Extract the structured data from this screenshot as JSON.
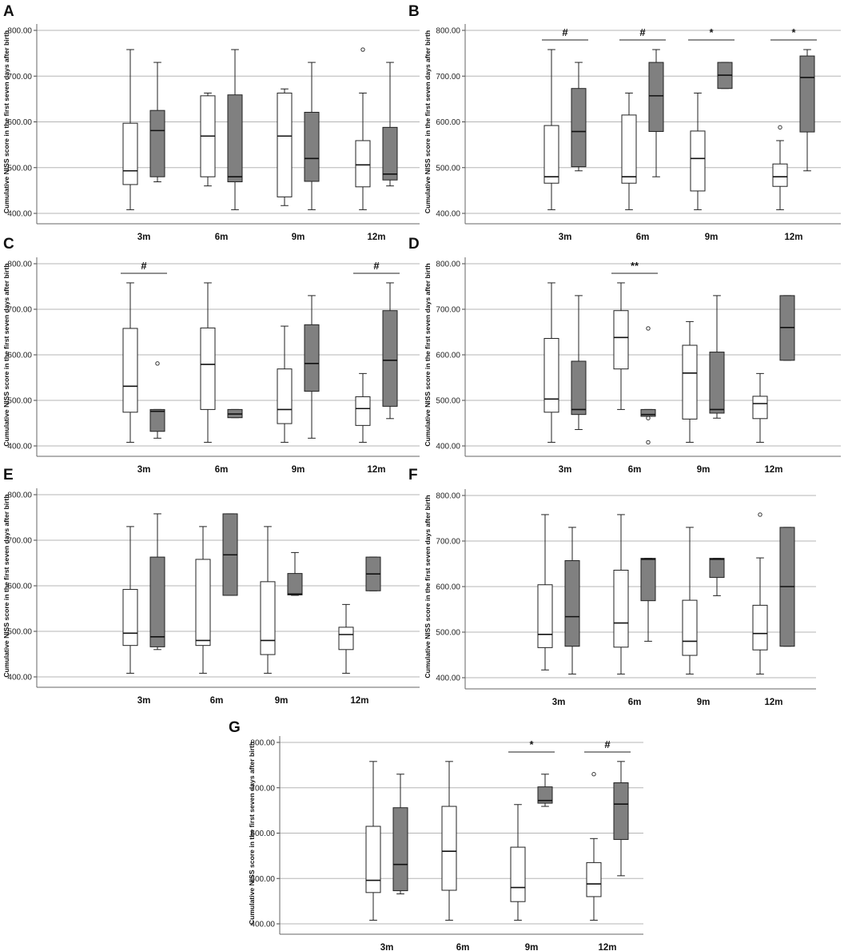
{
  "chart_data": [
    {
      "type": "box",
      "panel": "A",
      "ylabel": "Cumulative NISS score in the first seven days after birth",
      "ylim": [
        400,
        800
      ],
      "yticks": [
        "400.00",
        "500.00",
        "600.00",
        "700.00",
        "800.00"
      ],
      "categories": [
        "3m",
        "6m",
        "9m",
        "12m"
      ],
      "series": [
        {
          "color": "#ffffff",
          "boxes": [
            {
              "min": 408,
              "q1": 463,
              "median": 493,
              "q3": 597,
              "max": 758
            },
            {
              "min": 460,
              "q1": 480,
              "median": 569,
              "q3": 657,
              "max": 663
            },
            {
              "min": 417,
              "q1": 436,
              "median": 569,
              "q3": 663,
              "max": 672
            },
            {
              "min": 408,
              "q1": 458,
              "median": 506,
              "q3": 559,
              "max": 663,
              "outliers": [
                758
              ]
            }
          ]
        },
        {
          "color": "#808080",
          "boxes": [
            {
              "min": 469,
              "q1": 480,
              "median": 581,
              "q3": 625,
              "max": 730
            },
            {
              "min": 408,
              "q1": 469,
              "median": 480,
              "q3": 659,
              "max": 758
            },
            {
              "min": 408,
              "q1": 470,
              "median": 520,
              "q3": 621,
              "max": 730
            },
            {
              "min": 460,
              "q1": 473,
              "median": 486,
              "q3": 588,
              "max": 730
            }
          ]
        }
      ],
      "significance": []
    },
    {
      "type": "box",
      "panel": "B",
      "ylabel": "Cumulative NISS score in the first seven days after birth",
      "ylim": [
        400,
        800
      ],
      "yticks": [
        "400.00",
        "500.00",
        "600.00",
        "700.00",
        "800.00"
      ],
      "categories": [
        "3m",
        "6m",
        "9m",
        "12m"
      ],
      "series": [
        {
          "color": "#ffffff",
          "boxes": [
            {
              "min": 408,
              "q1": 466,
              "median": 480,
              "q3": 592,
              "max": 758
            },
            {
              "min": 408,
              "q1": 466,
              "median": 480,
              "q3": 615,
              "max": 663
            },
            {
              "min": 408,
              "q1": 449,
              "median": 520,
              "q3": 580,
              "max": 663
            },
            {
              "min": 408,
              "q1": 459,
              "median": 480,
              "q3": 508,
              "max": 559,
              "outliers": [
                588
              ]
            }
          ]
        },
        {
          "color": "#808080",
          "boxes": [
            {
              "min": 493,
              "q1": 502,
              "median": 579,
              "q3": 673,
              "max": 730
            },
            {
              "min": 480,
              "q1": 579,
              "median": 657,
              "q3": 730,
              "max": 758
            },
            {
              "min": 673,
              "q1": 673,
              "median": 702,
              "q3": 730,
              "max": 730
            },
            {
              "min": 493,
              "q1": 578,
              "median": 697,
              "q3": 744,
              "max": 758
            }
          ]
        }
      ],
      "significance": [
        {
          "category": 0,
          "label": "#"
        },
        {
          "category": 1,
          "label": "#"
        },
        {
          "category": 2,
          "label": "*"
        },
        {
          "category": 3,
          "label": "*"
        }
      ]
    },
    {
      "type": "box",
      "panel": "C",
      "ylabel": "Cumulative NISS score in the first seven days after birth",
      "ylim": [
        400,
        800
      ],
      "yticks": [
        "400.00",
        "500.00",
        "600.00",
        "700.00",
        "800.00"
      ],
      "categories": [
        "3m",
        "6m",
        "9m",
        "12m"
      ],
      "series": [
        {
          "color": "#ffffff",
          "boxes": [
            {
              "min": 408,
              "q1": 474,
              "median": 531,
              "q3": 658,
              "max": 758
            },
            {
              "min": 408,
              "q1": 480,
              "median": 579,
              "q3": 659,
              "max": 758
            },
            {
              "min": 408,
              "q1": 449,
              "median": 480,
              "q3": 569,
              "max": 663
            },
            {
              "min": 408,
              "q1": 445,
              "median": 482,
              "q3": 508,
              "max": 559
            }
          ]
        },
        {
          "color": "#808080",
          "boxes": [
            {
              "min": 417,
              "q1": 432,
              "median": 476,
              "q3": 480,
              "max": 480,
              "outliers": [
                581
              ]
            },
            {
              "min": 462,
              "q1": 462,
              "median": 470,
              "q3": 480,
              "max": 480
            },
            {
              "min": 417,
              "q1": 520,
              "median": 581,
              "q3": 666,
              "max": 730
            },
            {
              "min": 460,
              "q1": 487,
              "median": 588,
              "q3": 697,
              "max": 758
            }
          ]
        }
      ],
      "significance": [
        {
          "category": 0,
          "label": "#"
        },
        {
          "category": 3,
          "label": "#"
        }
      ]
    },
    {
      "type": "box",
      "panel": "D",
      "ylabel": "Cumulative NISS score in the first seven days after birth",
      "ylim": [
        400,
        800
      ],
      "yticks": [
        "400.00",
        "500.00",
        "600.00",
        "700.00",
        "800.00"
      ],
      "categories": [
        "3m",
        "6m",
        "9m",
        "12m"
      ],
      "series": [
        {
          "color": "#ffffff",
          "boxes": [
            {
              "min": 408,
              "q1": 474,
              "median": 503,
              "q3": 636,
              "max": 758
            },
            {
              "min": 480,
              "q1": 569,
              "median": 638,
              "q3": 697,
              "max": 758
            },
            {
              "min": 408,
              "q1": 459,
              "median": 560,
              "q3": 621,
              "max": 673
            },
            {
              "min": 408,
              "q1": 460,
              "median": 493,
              "q3": 509,
              "max": 559
            }
          ]
        },
        {
          "color": "#808080",
          "boxes": [
            {
              "min": 436,
              "q1": 469,
              "median": 480,
              "q3": 586,
              "max": 730
            },
            {
              "min": 465,
              "q1": 465,
              "median": 469,
              "q3": 480,
              "max": 480,
              "outliers": [
                658,
                461,
                408
              ]
            },
            {
              "min": 461,
              "q1": 472,
              "median": 480,
              "q3": 606,
              "max": 730
            },
            {
              "min": 588,
              "q1": 588,
              "median": 660,
              "q3": 730,
              "max": 730
            }
          ]
        }
      ],
      "significance": [
        {
          "category": 1,
          "label": "**"
        }
      ]
    },
    {
      "type": "box",
      "panel": "E",
      "ylabel": "Cumulative NISS score in the first seven days after birth",
      "ylim": [
        400,
        800
      ],
      "yticks": [
        "400.00",
        "500.00",
        "600.00",
        "700.00",
        "800.00"
      ],
      "categories": [
        "3m",
        "6m",
        "9m",
        "12m"
      ],
      "series": [
        {
          "color": "#ffffff",
          "boxes": [
            {
              "min": 408,
              "q1": 469,
              "median": 496,
              "q3": 592,
              "max": 730
            },
            {
              "min": 408,
              "q1": 469,
              "median": 480,
              "q3": 658,
              "max": 730
            },
            {
              "min": 408,
              "q1": 449,
              "median": 480,
              "q3": 609,
              "max": 730
            },
            {
              "min": 408,
              "q1": 460,
              "median": 493,
              "q3": 509,
              "max": 559
            }
          ]
        },
        {
          "color": "#808080",
          "boxes": [
            {
              "min": 460,
              "q1": 466,
              "median": 488,
              "q3": 663,
              "max": 758
            },
            {
              "min": 579,
              "q1": 579,
              "median": 668,
              "q3": 758,
              "max": 758
            },
            {
              "min": 579,
              "q1": 580,
              "median": 582,
              "q3": 627,
              "max": 673
            },
            {
              "min": 589,
              "q1": 589,
              "median": 626,
              "q3": 663,
              "max": 663
            }
          ]
        }
      ],
      "significance": []
    },
    {
      "type": "box",
      "panel": "F",
      "ylabel": "Cumulative NISS score in the first seven days after birth",
      "ylim": [
        400,
        800
      ],
      "yticks": [
        "400.00",
        "500.00",
        "600.00",
        "700.00",
        "800.00"
      ],
      "categories": [
        "3m",
        "6m",
        "9m",
        "12m"
      ],
      "series": [
        {
          "color": "#ffffff",
          "boxes": [
            {
              "min": 417,
              "q1": 466,
              "median": 495,
              "q3": 604,
              "max": 758
            },
            {
              "min": 408,
              "q1": 467,
              "median": 520,
              "q3": 636,
              "max": 758
            },
            {
              "min": 408,
              "q1": 449,
              "median": 480,
              "q3": 570,
              "max": 730
            },
            {
              "min": 408,
              "q1": 461,
              "median": 497,
              "q3": 559,
              "max": 663,
              "outliers": [
                758
              ]
            }
          ]
        },
        {
          "color": "#808080",
          "boxes": [
            {
              "min": 408,
              "q1": 469,
              "median": 534,
              "q3": 657,
              "max": 730
            },
            {
              "min": 480,
              "q1": 569,
              "median": 660,
              "q3": 662,
              "max": 662
            },
            {
              "min": 580,
              "q1": 620,
              "median": 660,
              "q3": 662,
              "max": 662
            },
            {
              "min": 469,
              "q1": 469,
              "median": 600,
              "q3": 730,
              "max": 730
            }
          ]
        }
      ],
      "significance": []
    },
    {
      "type": "box",
      "panel": "G",
      "ylabel": "Cumulative NISS score in the first seven days after birth",
      "ylim": [
        400,
        800
      ],
      "yticks": [
        "400.00",
        "500.00",
        "600.00",
        "700.00",
        "800.00"
      ],
      "categories": [
        "3m",
        "6m",
        "9m",
        "12m"
      ],
      "series": [
        {
          "color": "#ffffff",
          "boxes": [
            {
              "min": 408,
              "q1": 469,
              "median": 496,
              "q3": 615,
              "max": 758
            },
            {
              "min": 408,
              "q1": 474,
              "median": 560,
              "q3": 659,
              "max": 758
            },
            {
              "min": 408,
              "q1": 449,
              "median": 480,
              "q3": 569,
              "max": 663
            },
            {
              "min": 408,
              "q1": 460,
              "median": 488,
              "q3": 535,
              "max": 588,
              "outliers": [
                730
              ]
            }
          ]
        },
        {
          "color": "#808080",
          "boxes": [
            {
              "min": 466,
              "q1": 473,
              "median": 531,
              "q3": 656,
              "max": 730
            },
            null,
            {
              "min": 659,
              "q1": 666,
              "median": 672,
              "q3": 702,
              "max": 730
            },
            {
              "min": 506,
              "q1": 586,
              "median": 664,
              "q3": 711,
              "max": 758
            }
          ]
        }
      ],
      "significance": [
        {
          "category": 2,
          "label": "*"
        },
        {
          "category": 3,
          "label": "#"
        }
      ]
    }
  ]
}
